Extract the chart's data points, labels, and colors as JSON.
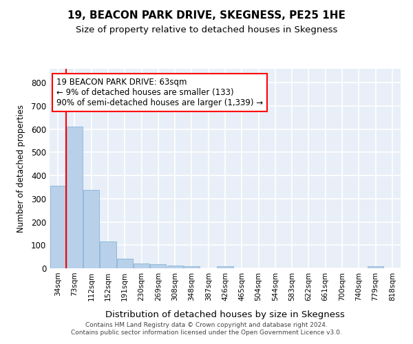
{
  "title": "19, BEACON PARK DRIVE, SKEGNESS, PE25 1HE",
  "subtitle": "Size of property relative to detached houses in Skegness",
  "xlabel": "Distribution of detached houses by size in Skegness",
  "ylabel": "Number of detached properties",
  "bar_color": "#b8d0ea",
  "bar_edge_color": "#7aaad0",
  "background_color": "#e8eff8",
  "grid_color": "#ffffff",
  "bins": [
    "34sqm",
    "73sqm",
    "112sqm",
    "152sqm",
    "191sqm",
    "230sqm",
    "269sqm",
    "308sqm",
    "348sqm",
    "387sqm",
    "426sqm",
    "465sqm",
    "504sqm",
    "544sqm",
    "583sqm",
    "622sqm",
    "661sqm",
    "700sqm",
    "740sqm",
    "779sqm",
    "818sqm"
  ],
  "values": [
    357,
    612,
    338,
    115,
    42,
    22,
    17,
    13,
    8,
    0,
    8,
    0,
    0,
    0,
    0,
    0,
    0,
    0,
    0,
    8,
    0
  ],
  "ylim": [
    0,
    860
  ],
  "yticks": [
    0,
    100,
    200,
    300,
    400,
    500,
    600,
    700,
    800
  ],
  "annotation_line1": "19 BEACON PARK DRIVE: 63sqm",
  "annotation_line2": "← 9% of detached houses are smaller (133)",
  "annotation_line3": "90% of semi-detached houses are larger (1,339) →",
  "footer_line1": "Contains HM Land Registry data © Crown copyright and database right 2024.",
  "footer_line2": "Contains public sector information licensed under the Open Government Licence v3.0."
}
